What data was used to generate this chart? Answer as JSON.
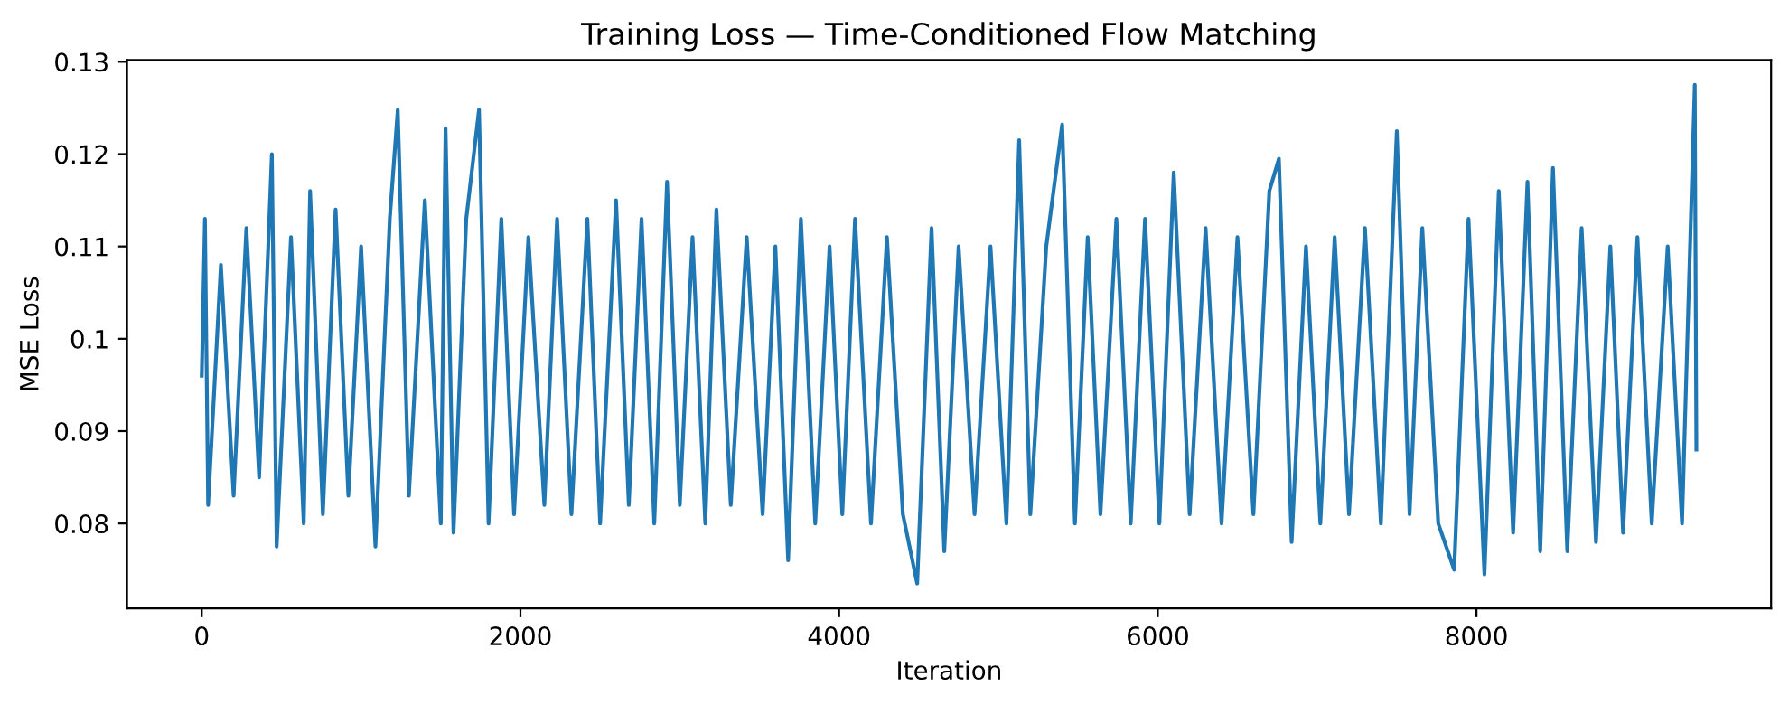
{
  "chart_data": {
    "type": "line",
    "title": "Training Loss — Time-Conditioned Flow Matching",
    "xlabel": "Iteration",
    "ylabel": "MSE Loss",
    "xlim": [
      -469,
      9849
    ],
    "xticks": [
      0,
      2000,
      4000,
      6000,
      8000
    ],
    "ylim": [
      0.0708,
      0.1302
    ],
    "yticks": [
      0.08,
      0.09,
      0.1,
      0.11,
      0.12,
      0.13
    ],
    "grid": false,
    "legend": false,
    "series": [
      {
        "color": "#1f77b4",
        "x": [
          0,
          20,
          40,
          120,
          200,
          280,
          360,
          440,
          470,
          560,
          640,
          680,
          760,
          840,
          920,
          1000,
          1090,
          1180,
          1230,
          1300,
          1400,
          1500,
          1530,
          1580,
          1660,
          1740,
          1800,
          1880,
          1960,
          2050,
          2150,
          2230,
          2320,
          2420,
          2500,
          2600,
          2680,
          2760,
          2840,
          2920,
          3000,
          3080,
          3160,
          3230,
          3320,
          3420,
          3520,
          3600,
          3680,
          3760,
          3850,
          3940,
          4020,
          4100,
          4200,
          4300,
          4400,
          4490,
          4580,
          4660,
          4750,
          4850,
          4950,
          5050,
          5130,
          5200,
          5300,
          5400,
          5480,
          5560,
          5640,
          5740,
          5830,
          5920,
          6010,
          6100,
          6200,
          6300,
          6400,
          6500,
          6600,
          6700,
          6760,
          6840,
          6930,
          7020,
          7110,
          7200,
          7300,
          7400,
          7500,
          7580,
          7660,
          7760,
          7860,
          7950,
          8050,
          8140,
          8230,
          8320,
          8400,
          8480,
          8570,
          8660,
          8750,
          8840,
          8920,
          9010,
          9100,
          9200,
          9290,
          9370,
          9380
        ],
        "values": [
          0.096,
          0.113,
          0.082,
          0.108,
          0.083,
          0.112,
          0.085,
          0.12,
          0.0775,
          0.111,
          0.08,
          0.116,
          0.081,
          0.114,
          0.083,
          0.11,
          0.0775,
          0.113,
          0.1248,
          0.083,
          0.115,
          0.08,
          0.1228,
          0.079,
          0.113,
          0.1248,
          0.08,
          0.113,
          0.081,
          0.111,
          0.082,
          0.113,
          0.081,
          0.113,
          0.08,
          0.115,
          0.082,
          0.113,
          0.08,
          0.117,
          0.082,
          0.111,
          0.08,
          0.114,
          0.082,
          0.111,
          0.081,
          0.11,
          0.076,
          0.113,
          0.08,
          0.11,
          0.081,
          0.113,
          0.08,
          0.111,
          0.081,
          0.0735,
          0.112,
          0.077,
          0.11,
          0.081,
          0.11,
          0.08,
          0.1215,
          0.081,
          0.11,
          0.1232,
          0.08,
          0.111,
          0.081,
          0.113,
          0.08,
          0.113,
          0.08,
          0.118,
          0.081,
          0.112,
          0.08,
          0.111,
          0.081,
          0.116,
          0.1195,
          0.078,
          0.11,
          0.08,
          0.111,
          0.081,
          0.112,
          0.08,
          0.1225,
          0.081,
          0.112,
          0.08,
          0.075,
          0.113,
          0.0745,
          0.116,
          0.079,
          0.117,
          0.077,
          0.1185,
          0.077,
          0.112,
          0.078,
          0.11,
          0.079,
          0.111,
          0.08,
          0.11,
          0.08,
          0.1275,
          0.088
        ]
      }
    ]
  }
}
